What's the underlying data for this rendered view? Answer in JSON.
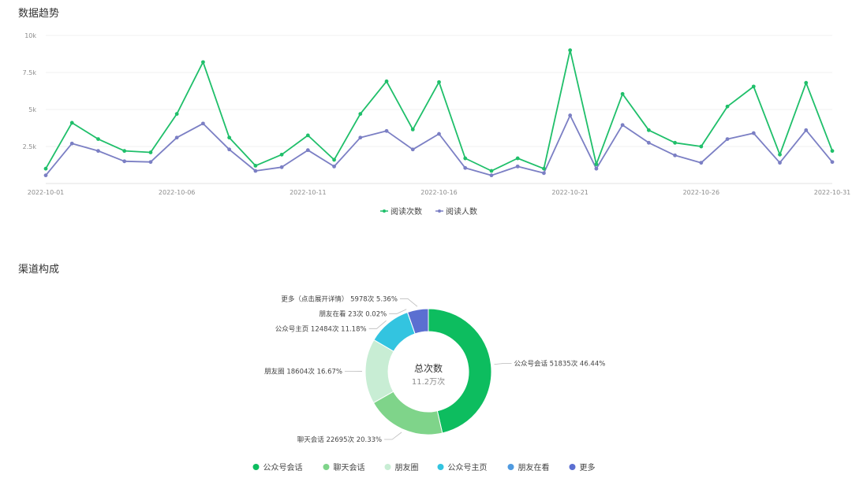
{
  "sections": {
    "trend_title": "数据趋势",
    "channel_title": "渠道构成"
  },
  "chart_data": [
    {
      "type": "line",
      "x": [
        "2022-10-01",
        "2022-10-02",
        "2022-10-03",
        "2022-10-04",
        "2022-10-05",
        "2022-10-06",
        "2022-10-07",
        "2022-10-08",
        "2022-10-09",
        "2022-10-10",
        "2022-10-11",
        "2022-10-12",
        "2022-10-13",
        "2022-10-14",
        "2022-10-15",
        "2022-10-16",
        "2022-10-17",
        "2022-10-18",
        "2022-10-19",
        "2022-10-20",
        "2022-10-21",
        "2022-10-22",
        "2022-10-23",
        "2022-10-24",
        "2022-10-25",
        "2022-10-26",
        "2022-10-27",
        "2022-10-28",
        "2022-10-29",
        "2022-10-30",
        "2022-10-31"
      ],
      "x_tick_labels": [
        "2022-10-01",
        "2022-10-06",
        "2022-10-11",
        "2022-10-16",
        "2022-10-21",
        "2022-10-26",
        "2022-10-31"
      ],
      "y_ticks": [
        2500,
        5000,
        7500,
        10000
      ],
      "y_tick_labels": [
        "2.5k",
        "5k",
        "7.5k",
        "10k"
      ],
      "ylim": [
        0,
        10000
      ],
      "grid": true,
      "legend_position": "bottom",
      "series": [
        {
          "name": "阅读次数",
          "color": "#1fbf6a",
          "values": [
            1000,
            4100,
            3000,
            2200,
            2100,
            4700,
            8200,
            3100,
            1200,
            1950,
            3250,
            1600,
            4700,
            6900,
            3650,
            6850,
            1700,
            850,
            1700,
            1000,
            9000,
            1300,
            6050,
            3600,
            2750,
            2500,
            5200,
            6550,
            1950,
            6800,
            2200
          ]
        },
        {
          "name": "阅读人数",
          "color": "#7b7fc4",
          "values": [
            550,
            2700,
            2200,
            1500,
            1450,
            3100,
            4050,
            2300,
            850,
            1100,
            2250,
            1150,
            3100,
            3550,
            2300,
            3350,
            1050,
            550,
            1150,
            700,
            4600,
            1000,
            3950,
            2750,
            1900,
            1400,
            3000,
            3400,
            1400,
            3600,
            1450
          ]
        }
      ]
    },
    {
      "type": "pie",
      "donut": true,
      "center_title": "总次数",
      "center_value": "11.2万次",
      "legend_position": "bottom",
      "slices": [
        {
          "name": "公众号会话",
          "value": 51835,
          "percent": 46.44,
          "label": "公众号会话 51835次 46.44%",
          "color": "#0dbd5f"
        },
        {
          "name": "聊天会话",
          "value": 22695,
          "percent": 20.33,
          "label": "聊天会话 22695次 20.33%",
          "color": "#7fd48a"
        },
        {
          "name": "朋友圈",
          "value": 18604,
          "percent": 16.67,
          "label": "朋友圈 18604次 16.67%",
          "color": "#c8edd4"
        },
        {
          "name": "公众号主页",
          "value": 12484,
          "percent": 11.18,
          "label": "公众号主页 12484次 11.18%",
          "color": "#33c4e0"
        },
        {
          "name": "朋友在看",
          "value": 23,
          "percent": 0.02,
          "label": "朋友在看 23次 0.02%",
          "color": "#4f9ae0"
        },
        {
          "name": "更多",
          "value": 5978,
          "percent": 5.36,
          "label": "更多（点击展开详情） 5978次 5.36%",
          "color": "#5b6fd1"
        }
      ]
    }
  ]
}
